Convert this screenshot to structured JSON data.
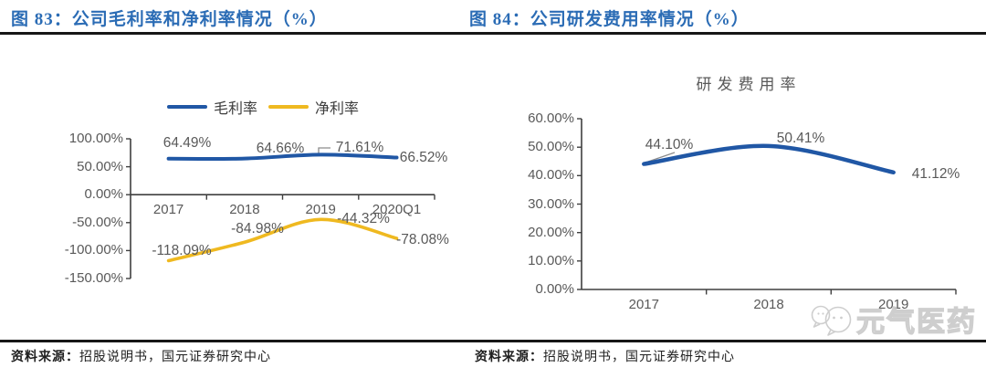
{
  "figures": [
    {
      "caption": "图 83：公司毛利率和净利率情况（%）",
      "source_label": "资料来源：",
      "source_text": "招股说明书，国元证券研究中心"
    },
    {
      "caption": "图 84：公司研发费用率情况（%）",
      "source_label": "资料来源：",
      "source_text": "招股说明书，国元证券研究中心"
    }
  ],
  "watermark": {
    "text": "元气医药",
    "icon": "wechat-bubbles-icon"
  },
  "colors": {
    "caption_blue": "#2B6CB5",
    "line_blue": "#2057A5",
    "line_yellow": "#EFB920",
    "axis_gray": "#3f3f3f",
    "label_gray": "#595959",
    "watermark_gray": "#c9c9c9"
  },
  "chart_data": [
    {
      "type": "line",
      "title": "",
      "categories": [
        "2017",
        "2018",
        "2019",
        "2020Q1"
      ],
      "series": [
        {
          "name": "毛利率",
          "color_key": "line_blue",
          "values": [
            64.49,
            64.66,
            71.61,
            66.52
          ],
          "labels": [
            "64.49%",
            "64.66%",
            "71.61%",
            "66.52%"
          ]
        },
        {
          "name": "净利率",
          "color_key": "line_yellow",
          "values": [
            -118.09,
            -84.98,
            -44.32,
            -78.08
          ],
          "labels": [
            "-118.09%",
            "-84.98%",
            "-44.32%",
            "-78.08%"
          ]
        }
      ],
      "ylim": [
        -150,
        100
      ],
      "ytick_labels": [
        "100.00%",
        "50.00%",
        "0.00%",
        "-50.00%",
        "-100.00%",
        "-150.00%"
      ],
      "legend_position": "top",
      "grid": false
    },
    {
      "type": "line",
      "title": "研发费用率",
      "categories": [
        "2017",
        "2018",
        "2019"
      ],
      "series": [
        {
          "name": "研发费用率",
          "color_key": "line_blue",
          "values": [
            44.1,
            50.41,
            41.12
          ],
          "labels": [
            "44.10%",
            "50.41%",
            "41.12%"
          ]
        }
      ],
      "ylim": [
        0,
        60
      ],
      "ytick_labels": [
        "60.00%",
        "50.00%",
        "40.00%",
        "30.00%",
        "20.00%",
        "10.00%",
        "0.00%"
      ],
      "legend_position": "none",
      "grid": false
    }
  ]
}
